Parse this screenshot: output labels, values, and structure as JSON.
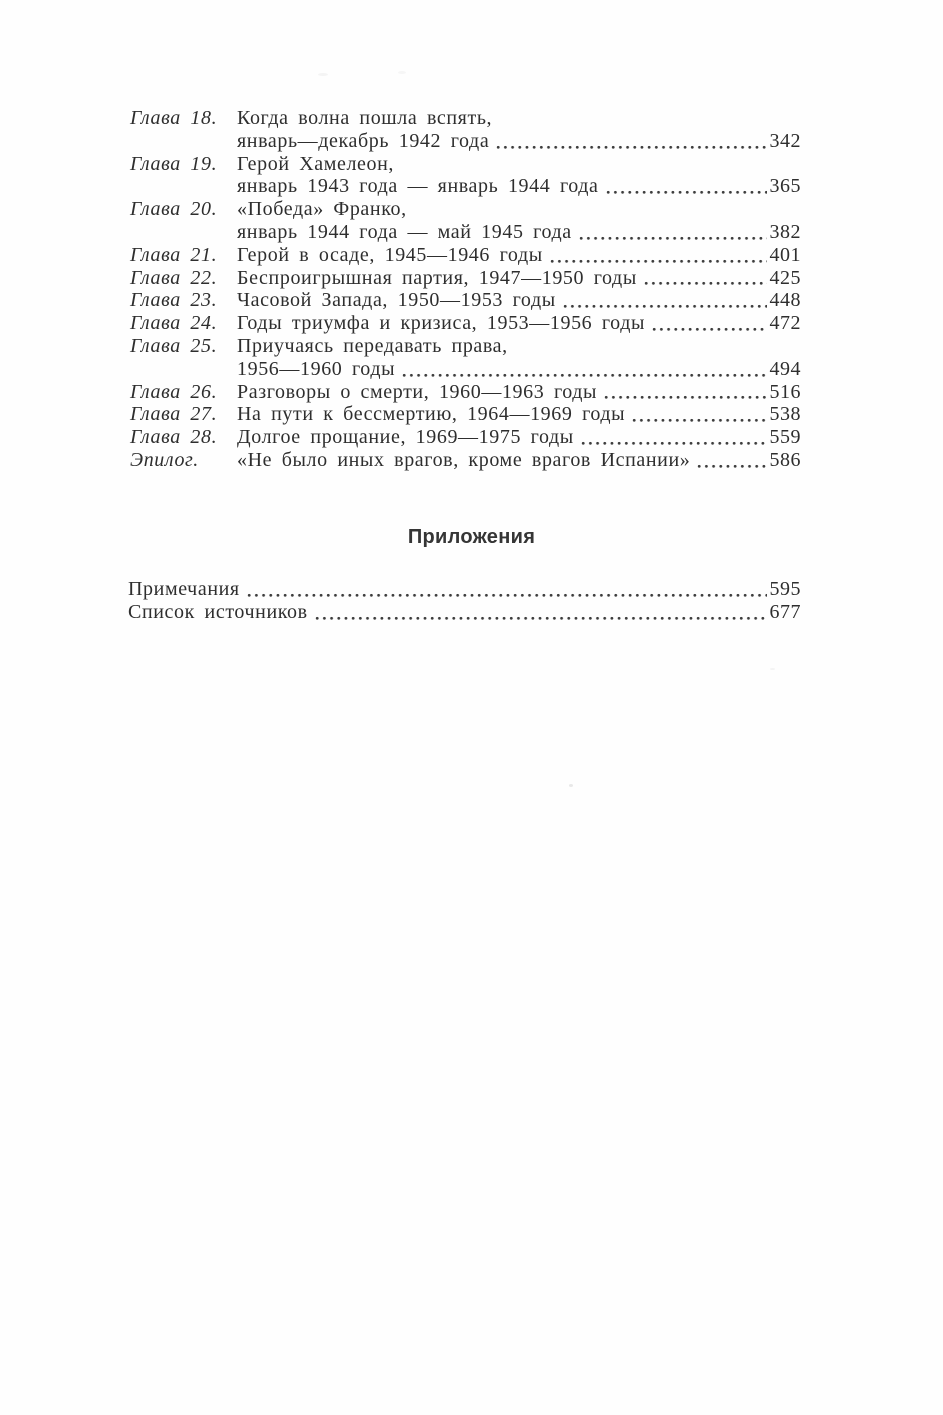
{
  "toc": {
    "entries": [
      {
        "label": "Глава 18.",
        "line1": "Когда волна пошла вспять,",
        "line2": "январь—декабрь 1942 года",
        "page": "342"
      },
      {
        "label": "Глава 19.",
        "line1": "Герой Хамелеон,",
        "line2": "январь 1943 года — январь 1944 года",
        "page": "365"
      },
      {
        "label": "Глава 20.",
        "line1": "«Победа» Франко,",
        "line2": "январь 1944 года — май 1945 года",
        "page": "382"
      },
      {
        "label": "Глава 21.",
        "line1": "Герой в осаде, 1945—1946 годы",
        "page": "401"
      },
      {
        "label": "Глава 22.",
        "line1": "Беспроигрышная партия, 1947—1950 годы",
        "page": "425"
      },
      {
        "label": "Глава 23.",
        "line1": "Часовой Запада, 1950—1953 годы",
        "page": "448"
      },
      {
        "label": "Глава 24.",
        "line1": "Годы триумфа и кризиса, 1953—1956 годы",
        "page": "472"
      },
      {
        "label": "Глава 25.",
        "line1": "Приучаясь передавать права,",
        "line2": "1956—1960 годы",
        "page": "494"
      },
      {
        "label": "Глава 26.",
        "line1": "Разговоры о смерти, 1960—1963 годы",
        "page": "516"
      },
      {
        "label": "Глава 27.",
        "line1": "На пути к бессмертию, 1964—1969 годы",
        "page": "538"
      },
      {
        "label": "Глава 28.",
        "line1": "Долгое прощание, 1969—1975 годы",
        "page": "559"
      },
      {
        "label": "Эпилог.",
        "line1": "«Не было иных врагов, кроме врагов Испании»",
        "page": "586"
      }
    ]
  },
  "appendix": {
    "heading": "Приложения",
    "items": [
      {
        "title": "Примечания",
        "page": "595"
      },
      {
        "title": "Список источников",
        "page": "677"
      }
    ]
  },
  "colors": {
    "text": "#2e2e2e",
    "background": "#fefefe"
  }
}
